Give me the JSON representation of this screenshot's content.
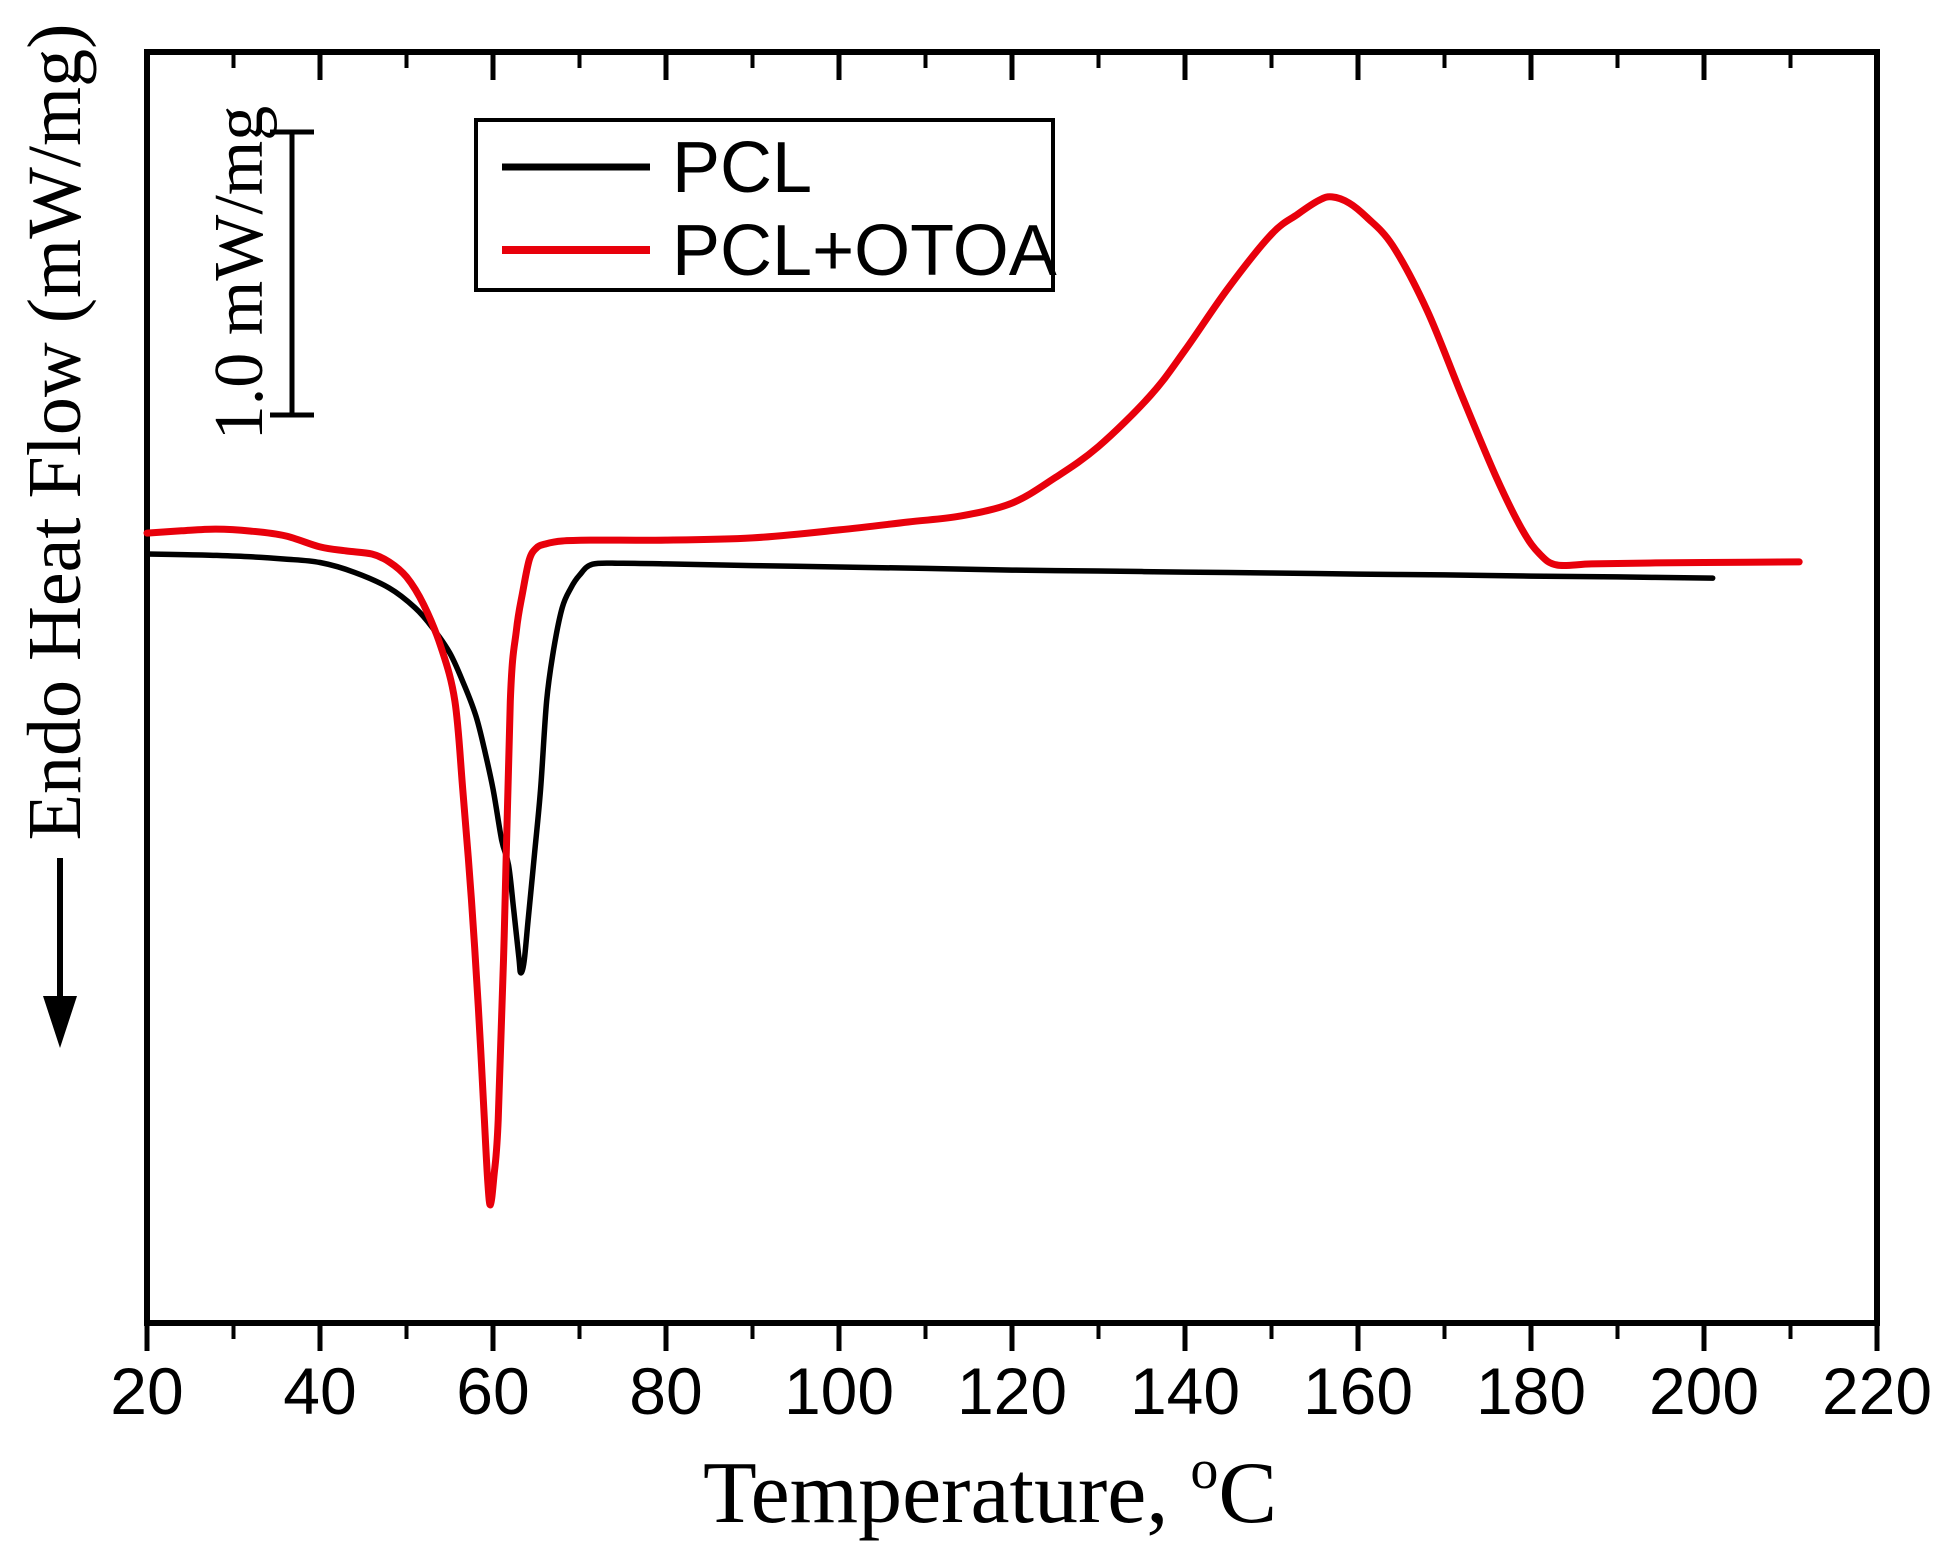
{
  "figure": {
    "background": "#ffffff",
    "axis_color": "#000000"
  },
  "chart_data": {
    "type": "line",
    "title": "",
    "xlabel": {
      "text": "Temperature, ",
      "superscript": "o",
      "unit": "C"
    },
    "ylabel": "Endo Heat Flow (mW/mg)",
    "endo_arrow_direction": "down",
    "xlim": [
      20,
      220
    ],
    "grid": false,
    "x_ticks_major": [
      20,
      40,
      60,
      80,
      100,
      120,
      140,
      160,
      180,
      200,
      220
    ],
    "x_ticks_minor": [
      30,
      50,
      70,
      90,
      110,
      130,
      150,
      170,
      190,
      210
    ],
    "x_tick_labels": [
      "20",
      "40",
      "60",
      "80",
      "100",
      "120",
      "140",
      "160",
      "180",
      "200",
      "220"
    ],
    "scale_bar": {
      "label": "1.0 mW/mg",
      "value_mw_per_mg": 1.0
    },
    "legend": {
      "position": "top-left-inside",
      "entries": [
        {
          "label": "PCL",
          "color": "#000000"
        },
        {
          "label": "PCL+OTOA",
          "color": "#e8000b"
        }
      ]
    },
    "y_units": "mW/mg (relative heat flow, endothermic plotted downward)",
    "key_readings": {
      "pcl_melting_peak_c": 63,
      "pcl_otoa_melting_peak_c": 60,
      "pcl_otoa_exotherm_peak_c": 157,
      "pcl_melting_peak_depth_mw_mg": -1.48,
      "pcl_otoa_melting_peak_depth_mw_mg": -2.3,
      "pcl_otoa_exotherm_height_mw_mg": 1.26
    },
    "series": [
      {
        "name": "PCL",
        "color": "#000000",
        "width": 5.5,
        "points": [
          [
            20,
            0.0
          ],
          [
            24,
            -0.002
          ],
          [
            28,
            -0.005
          ],
          [
            32,
            -0.01
          ],
          [
            36,
            -0.018
          ],
          [
            40,
            -0.03
          ],
          [
            44,
            -0.065
          ],
          [
            48,
            -0.12
          ],
          [
            51,
            -0.19
          ],
          [
            53,
            -0.26
          ],
          [
            55,
            -0.35
          ],
          [
            56.5,
            -0.45
          ],
          [
            58,
            -0.57
          ],
          [
            59,
            -0.69
          ],
          [
            60,
            -0.83
          ],
          [
            61,
            -1.01
          ],
          [
            61.8,
            -1.1
          ],
          [
            62.4,
            -1.26
          ],
          [
            63,
            -1.43
          ],
          [
            63.2,
            -1.48
          ],
          [
            63.6,
            -1.44
          ],
          [
            64.1,
            -1.28
          ],
          [
            64.8,
            -1.06
          ],
          [
            65.5,
            -0.83
          ],
          [
            66.2,
            -0.52
          ],
          [
            67,
            -0.34
          ],
          [
            68,
            -0.19
          ],
          [
            69,
            -0.12
          ],
          [
            70,
            -0.075
          ],
          [
            71.5,
            -0.036
          ],
          [
            75,
            -0.033
          ],
          [
            80,
            -0.035
          ],
          [
            90,
            -0.041
          ],
          [
            100,
            -0.046
          ],
          [
            110,
            -0.051
          ],
          [
            120,
            -0.057
          ],
          [
            130,
            -0.06
          ],
          [
            140,
            -0.064
          ],
          [
            150,
            -0.067
          ],
          [
            160,
            -0.071
          ],
          [
            170,
            -0.074
          ],
          [
            180,
            -0.078
          ],
          [
            190,
            -0.081
          ],
          [
            201,
            -0.085
          ]
        ]
      },
      {
        "name": "PCL+OTOA",
        "color": "#e8000b",
        "width": 7,
        "points": [
          [
            20,
            0.074
          ],
          [
            24,
            0.082
          ],
          [
            28,
            0.088
          ],
          [
            32,
            0.081
          ],
          [
            36,
            0.064
          ],
          [
            40,
            0.025
          ],
          [
            43,
            0.011
          ],
          [
            46,
            0.0
          ],
          [
            48,
            -0.028
          ],
          [
            50,
            -0.081
          ],
          [
            52,
            -0.18
          ],
          [
            54,
            -0.33
          ],
          [
            55.6,
            -0.52
          ],
          [
            56.5,
            -0.83
          ],
          [
            57.5,
            -1.22
          ],
          [
            58.3,
            -1.6
          ],
          [
            59,
            -2.0
          ],
          [
            59.4,
            -2.22
          ],
          [
            59.7,
            -2.3
          ],
          [
            60.1,
            -2.2
          ],
          [
            60.6,
            -2.0
          ],
          [
            61.3,
            -1.35
          ],
          [
            62,
            -0.52
          ],
          [
            62.7,
            -0.27
          ],
          [
            63.4,
            -0.14
          ],
          [
            64.2,
            -0.02
          ],
          [
            65,
            0.021
          ],
          [
            66,
            0.035
          ],
          [
            68,
            0.046
          ],
          [
            72,
            0.049
          ],
          [
            80,
            0.049
          ],
          [
            90,
            0.057
          ],
          [
            100,
            0.085
          ],
          [
            108,
            0.113
          ],
          [
            114,
            0.134
          ],
          [
            120,
            0.18
          ],
          [
            125,
            0.27
          ],
          [
            130,
            0.38
          ],
          [
            136,
            0.56
          ],
          [
            140,
            0.72
          ],
          [
            145,
            0.94
          ],
          [
            150,
            1.13
          ],
          [
            153,
            1.2
          ],
          [
            155.5,
            1.25
          ],
          [
            157,
            1.262
          ],
          [
            159,
            1.24
          ],
          [
            161,
            1.19
          ],
          [
            164,
            1.09
          ],
          [
            168,
            0.86
          ],
          [
            172,
            0.56
          ],
          [
            176,
            0.27
          ],
          [
            179,
            0.085
          ],
          [
            181,
            0.0
          ],
          [
            183,
            -0.039
          ],
          [
            187,
            -0.035
          ],
          [
            193,
            -0.032
          ],
          [
            200,
            -0.03
          ],
          [
            211,
            -0.028
          ]
        ]
      }
    ]
  }
}
